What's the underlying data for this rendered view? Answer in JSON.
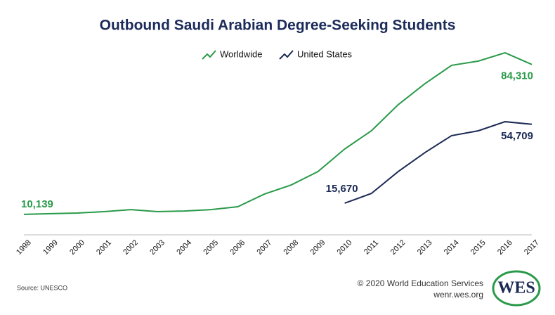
{
  "chart_data": {
    "type": "line",
    "title": "Outbound Saudi Arabian Degree-Seeking Students",
    "categories": [
      "1998",
      "1999",
      "2000",
      "2001",
      "2002",
      "2003",
      "2004",
      "2005",
      "2006",
      "2007",
      "2008",
      "2009",
      "2010",
      "2011",
      "2012",
      "2013",
      "2014",
      "2015",
      "2016",
      "2017"
    ],
    "series": [
      {
        "name": "Worldwide",
        "color": "#2a9a4a",
        "values": [
          10139,
          10500,
          10800,
          11500,
          12500,
          11500,
          11800,
          12500,
          13900,
          20200,
          24700,
          31300,
          42500,
          51500,
          64400,
          74800,
          83900,
          86000,
          90100,
          84310
        ],
        "value_labels": [
          "10,139",
          null,
          null,
          null,
          null,
          null,
          null,
          null,
          null,
          null,
          null,
          null,
          null,
          null,
          null,
          null,
          null,
          null,
          null,
          "84,310"
        ]
      },
      {
        "name": "United States",
        "color": "#1b2a55",
        "values": [
          null,
          null,
          null,
          null,
          null,
          null,
          null,
          null,
          null,
          null,
          null,
          null,
          15670,
          20500,
          31300,
          40700,
          49100,
          51500,
          56000,
          54709
        ],
        "value_labels": [
          null,
          null,
          null,
          null,
          null,
          null,
          null,
          null,
          null,
          null,
          null,
          null,
          "15,670",
          null,
          null,
          null,
          null,
          null,
          null,
          "54,709"
        ]
      }
    ],
    "ylim": [
      0,
      95000
    ],
    "source": "Source: UNESCO",
    "copyright": "© 2020 World Education Services",
    "website": "wenr.wes.org",
    "logo": "WES"
  }
}
